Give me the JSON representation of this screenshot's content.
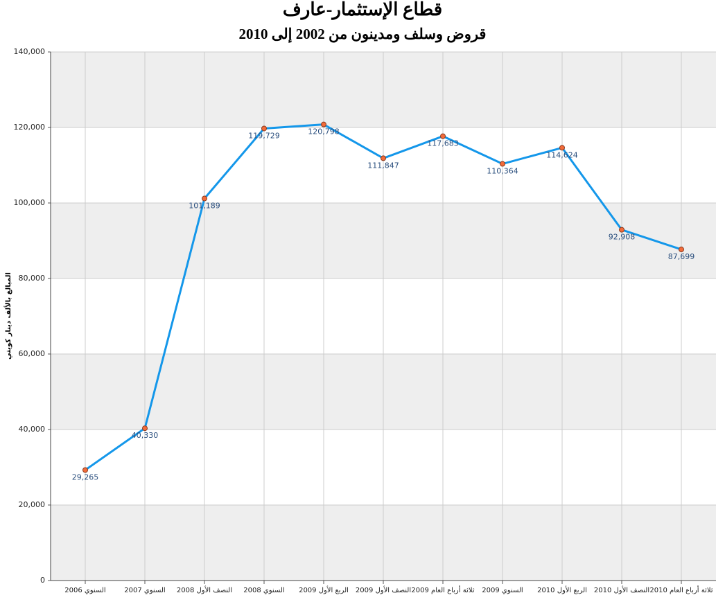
{
  "chart_data": {
    "type": "line",
    "title": "قطاع الإستثمار-عارف",
    "subtitle": "قروض وسلف ومدينون من 2002 إلى 2010",
    "y_label": "المبالغ بالألف دينار كويتي",
    "categories": [
      "السنوي 2006",
      "السنوي 2007",
      "النصف الأول 2008",
      "السنوي 2008",
      "الربع الأول 2009",
      "النصف الأول 2009",
      "ثلاثة أرباع العام 2009",
      "السنوي 2009",
      "الربع الأول 2010",
      "النصف الأول 2010",
      "ثلاثة أرباع العام 2010"
    ],
    "values": [
      29265,
      40330,
      101189,
      119729,
      120798,
      111847,
      117683,
      110364,
      114624,
      92908,
      87699
    ],
    "value_labels": [
      "29,265",
      "40,330",
      "101,189",
      "119,729",
      "120,798",
      "111,847",
      "117,683",
      "110,364",
      "114,624",
      "92,908",
      "87,699"
    ],
    "color": "#1497ea",
    "marker_color": "#f26b3a",
    "ylim": [
      0,
      140000
    ],
    "yticks": [
      0,
      {
        "value": 20000,
        "label": "20,000"
      },
      {
        "value": 40000,
        "label": "40,000"
      },
      {
        "value": 60000,
        "label": "60,000"
      },
      {
        "value": 80000,
        "label": "80,000"
      },
      {
        "value": 100000,
        "label": "100,000"
      },
      {
        "value": 120000,
        "label": "120,000"
      },
      {
        "value": 140000,
        "label": "140,000"
      }
    ],
    "grid": true
  }
}
